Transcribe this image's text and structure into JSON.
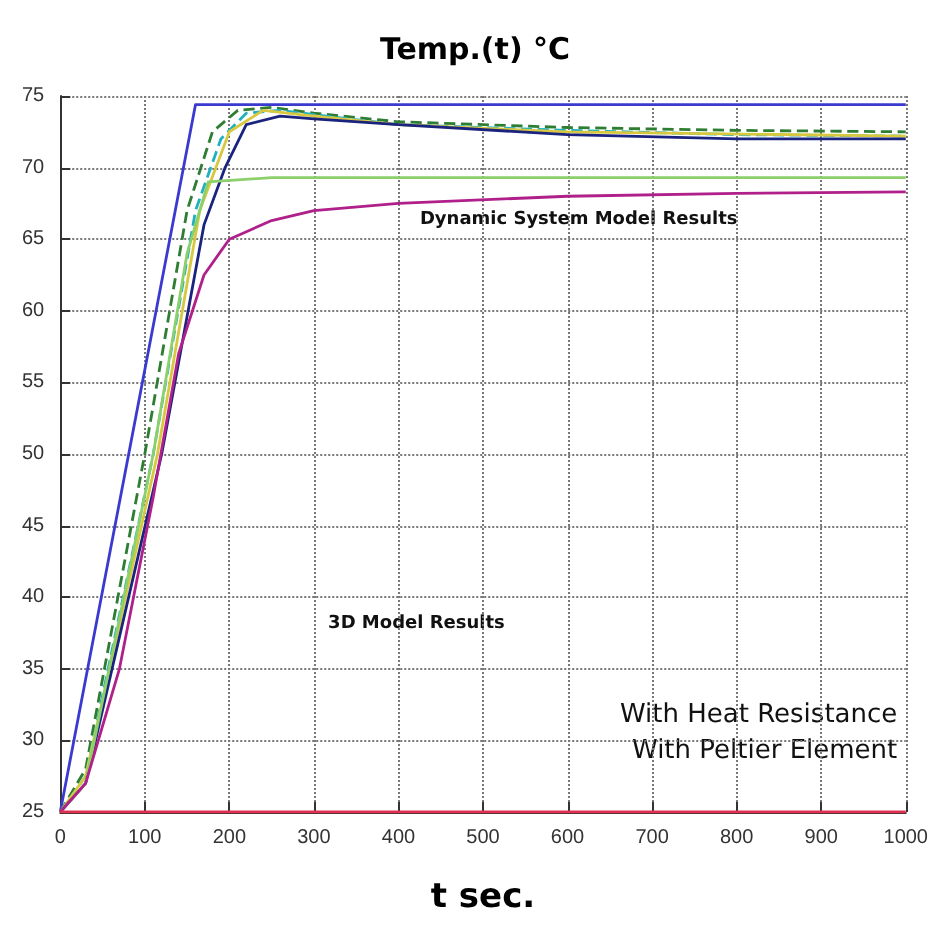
{
  "chart_data": {
    "type": "line",
    "title": "Temp.(t) °C",
    "xlabel": "t sec.",
    "xlim": [
      0,
      1000
    ],
    "xticks": [
      0,
      100,
      200,
      300,
      400,
      500,
      600,
      700,
      800,
      900,
      1000
    ],
    "ylim": [
      25,
      75
    ],
    "yticks": [
      25,
      30,
      35,
      40,
      45,
      50,
      55,
      60,
      65,
      70,
      75
    ],
    "grid": true,
    "marker": "none",
    "series": [
      {
        "color": "#3a3ad0",
        "x": [
          0,
          160,
          1000
        ],
        "values": [
          25,
          74.4,
          74.4
        ]
      },
      {
        "color": "#2e7d32",
        "line_style": "dashed",
        "x": [
          0,
          30,
          100,
          150,
          180,
          210,
          250,
          300,
          400,
          600,
          800,
          1000
        ],
        "values": [
          25,
          28,
          50,
          67,
          72.5,
          74,
          74.2,
          73.8,
          73.2,
          72.8,
          72.6,
          72.5
        ]
      },
      {
        "color": "#20b0c0",
        "line_style": "dashed",
        "x": [
          0,
          30,
          110,
          160,
          190,
          220,
          260,
          300,
          400,
          600,
          800,
          1000
        ],
        "values": [
          25,
          27.5,
          50,
          67,
          72,
          73.8,
          74,
          73.7,
          73,
          72.6,
          72.3,
          72.2
        ]
      },
      {
        "color": "#d8c840",
        "x": [
          0,
          30,
          115,
          165,
          200,
          240,
          300,
          400,
          600,
          1000
        ],
        "values": [
          25,
          27.5,
          50,
          67,
          72.5,
          74,
          73.6,
          73,
          72.5,
          72.2
        ]
      },
      {
        "color": "#1a237e",
        "x": [
          0,
          30,
          120,
          170,
          195,
          220,
          260,
          300,
          400,
          600,
          800,
          1000
        ],
        "values": [
          25,
          27,
          50,
          66,
          70,
          73,
          73.6,
          73.4,
          73,
          72.3,
          72,
          72
        ]
      },
      {
        "color": "#8bd06a",
        "x": [
          0,
          30,
          110,
          150,
          175,
          250,
          1000
        ],
        "values": [
          25,
          27,
          50,
          64,
          69,
          69.3,
          69.3
        ]
      },
      {
        "color": "#b0208a",
        "x": [
          0,
          30,
          70,
          110,
          140,
          170,
          200,
          250,
          300,
          400,
          600,
          800,
          1000
        ],
        "values": [
          25,
          27,
          35,
          47,
          57,
          62.5,
          65,
          66.3,
          67,
          67.5,
          68,
          68.2,
          68.3
        ]
      },
      {
        "color": "#e03050",
        "x": [
          0,
          1000
        ],
        "values": [
          25,
          25
        ]
      }
    ],
    "annotations": [
      "Dynamic System Model Results",
      "3D Model Results",
      "With Heat Resistance",
      "With Peltier Element"
    ]
  }
}
